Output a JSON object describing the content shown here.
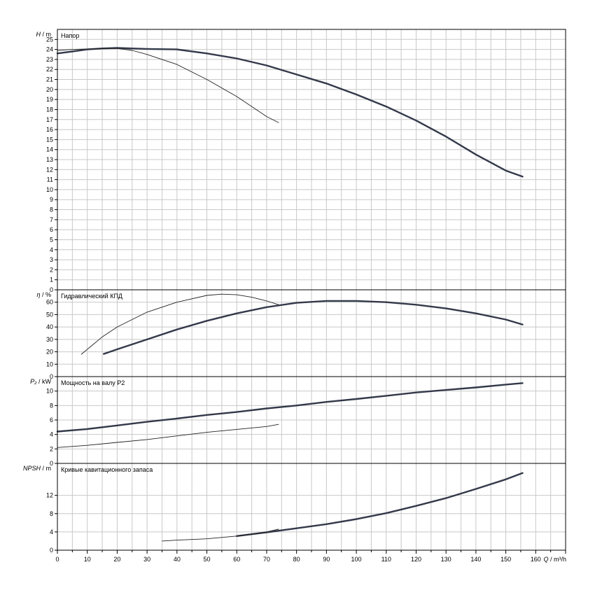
{
  "chart_data": {
    "type": "line",
    "x_axis": {
      "label_symbol": "Q",
      "label_unit": "m³/h",
      "range": [
        0,
        170
      ],
      "ticks": [
        0,
        10,
        20,
        30,
        40,
        50,
        60,
        70,
        80,
        90,
        100,
        110,
        120,
        130,
        140,
        150,
        160
      ]
    },
    "panels": [
      {
        "id": "head",
        "title": "Напор",
        "y_symbol": "H",
        "y_unit": "m",
        "y_range": [
          0,
          26
        ],
        "y_ticks": [
          0,
          1,
          2,
          3,
          4,
          5,
          6,
          7,
          8,
          9,
          10,
          11,
          12,
          13,
          14,
          15,
          16,
          17,
          18,
          19,
          20,
          21,
          22,
          23,
          24,
          25
        ],
        "series": [
          {
            "weight": "thick",
            "points": [
              [
                0,
                23.6
              ],
              [
                5,
                23.8
              ],
              [
                10,
                24.0
              ],
              [
                15,
                24.1
              ],
              [
                20,
                24.15
              ],
              [
                30,
                24.05
              ],
              [
                40,
                24.0
              ],
              [
                50,
                23.6
              ],
              [
                60,
                23.1
              ],
              [
                70,
                22.4
              ],
              [
                80,
                21.5
              ],
              [
                90,
                20.6
              ],
              [
                100,
                19.5
              ],
              [
                110,
                18.3
              ],
              [
                120,
                16.9
              ],
              [
                130,
                15.3
              ],
              [
                140,
                13.5
              ],
              [
                150,
                11.9
              ],
              [
                155.6,
                11.3
              ]
            ]
          },
          {
            "weight": "thin",
            "points": [
              [
                0,
                23.9
              ],
              [
                5,
                24.0
              ],
              [
                10,
                24.05
              ],
              [
                20,
                24.1
              ],
              [
                25,
                23.9
              ],
              [
                30,
                23.5
              ],
              [
                40,
                22.5
              ],
              [
                50,
                21.0
              ],
              [
                60,
                19.3
              ],
              [
                70,
                17.3
              ],
              [
                74,
                16.7
              ]
            ]
          }
        ]
      },
      {
        "id": "efficiency",
        "title": "Гидравлический КПД",
        "y_symbol": "η",
        "y_unit": "%",
        "y_range": [
          0,
          70
        ],
        "y_ticks": [
          0,
          10,
          20,
          30,
          40,
          50,
          60
        ],
        "series": [
          {
            "weight": "thick",
            "points": [
              [
                15.5,
                18.3
              ],
              [
                20,
                22
              ],
              [
                30,
                30
              ],
              [
                40,
                38
              ],
              [
                50,
                45
              ],
              [
                60,
                51
              ],
              [
                70,
                56
              ],
              [
                80,
                59.5
              ],
              [
                90,
                61
              ],
              [
                100,
                61
              ],
              [
                110,
                60
              ],
              [
                120,
                58
              ],
              [
                130,
                55
              ],
              [
                140,
                51
              ],
              [
                150,
                46
              ],
              [
                155.6,
                42
              ]
            ]
          },
          {
            "weight": "thin",
            "points": [
              [
                8,
                18
              ],
              [
                15,
                32
              ],
              [
                20,
                40
              ],
              [
                30,
                52
              ],
              [
                40,
                60
              ],
              [
                50,
                65.5
              ],
              [
                55,
                66.5
              ],
              [
                60,
                66
              ],
              [
                65,
                64
              ],
              [
                70,
                61
              ],
              [
                74,
                58
              ]
            ]
          }
        ]
      },
      {
        "id": "power",
        "title": "Мощность на валу P2",
        "y_symbol": "P₂",
        "y_unit": "kW",
        "y_range": [
          0,
          12
        ],
        "y_ticks": [
          0,
          2,
          4,
          6,
          8,
          10
        ],
        "series": [
          {
            "weight": "thick",
            "points": [
              [
                0,
                4.4
              ],
              [
                10,
                4.75
              ],
              [
                20,
                5.25
              ],
              [
                30,
                5.75
              ],
              [
                40,
                6.2
              ],
              [
                50,
                6.7
              ],
              [
                60,
                7.1
              ],
              [
                70,
                7.6
              ],
              [
                80,
                8.0
              ],
              [
                90,
                8.5
              ],
              [
                100,
                8.9
              ],
              [
                110,
                9.35
              ],
              [
                120,
                9.8
              ],
              [
                130,
                10.15
              ],
              [
                140,
                10.5
              ],
              [
                150,
                10.9
              ],
              [
                155.6,
                11.1
              ]
            ]
          },
          {
            "weight": "thin",
            "points": [
              [
                0,
                2.2
              ],
              [
                10,
                2.5
              ],
              [
                20,
                2.9
              ],
              [
                30,
                3.3
              ],
              [
                40,
                3.8
              ],
              [
                50,
                4.3
              ],
              [
                60,
                4.7
              ],
              [
                70,
                5.1
              ],
              [
                74,
                5.4
              ]
            ]
          }
        ]
      },
      {
        "id": "npsh",
        "title": "Кривые кавитационного запаса",
        "y_symbol": "NPSH",
        "y_unit": "m",
        "y_range": [
          0,
          19
        ],
        "y_ticks": [
          0,
          4,
          8,
          12
        ],
        "series": [
          {
            "weight": "thick",
            "points": [
              [
                60,
                3.1
              ],
              [
                70,
                3.9
              ],
              [
                80,
                4.8
              ],
              [
                90,
                5.7
              ],
              [
                100,
                6.8
              ],
              [
                110,
                8.1
              ],
              [
                120,
                9.7
              ],
              [
                130,
                11.4
              ],
              [
                140,
                13.4
              ],
              [
                150,
                15.5
              ],
              [
                155.6,
                16.9
              ]
            ]
          },
          {
            "weight": "thin",
            "points": [
              [
                35,
                2.0
              ],
              [
                40,
                2.2
              ],
              [
                50,
                2.5
              ],
              [
                60,
                3.1
              ],
              [
                70,
                4.0
              ],
              [
                74,
                4.6
              ]
            ]
          }
        ]
      }
    ],
    "grid": true
  }
}
